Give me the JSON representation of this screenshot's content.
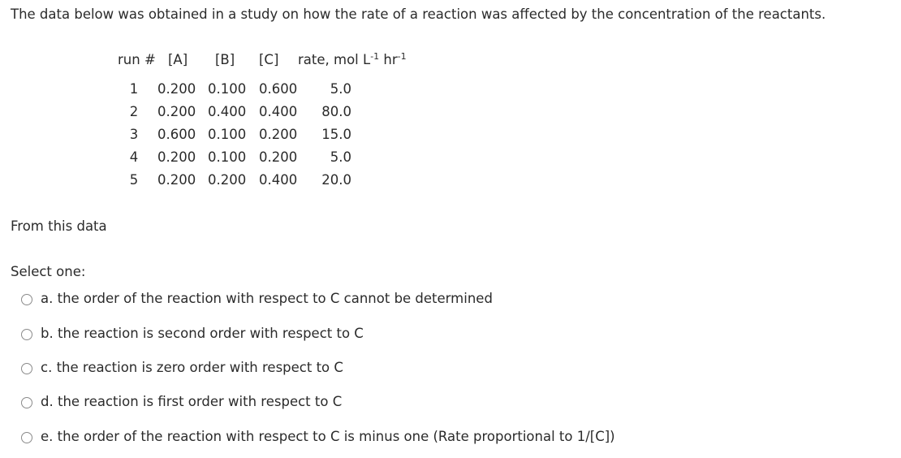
{
  "question": {
    "intro": "The data below was obtained in a study on how the rate of a reaction was affected by the concentration of the reactants.",
    "table": {
      "header": [
        [
          {
            "text": "run #"
          }
        ],
        [
          {
            "text": "[A]"
          }
        ],
        [
          {
            "text": "[B]"
          }
        ],
        [
          {
            "text": "[C]"
          }
        ],
        [
          {
            "text": "rate, mol L"
          },
          {
            "sup": "-1"
          },
          {
            "text": " hr"
          },
          {
            "sup": "-1"
          }
        ]
      ],
      "rows": [
        [
          "1",
          "0.200",
          "0.100",
          "0.600",
          "5.0"
        ],
        [
          "2",
          "0.200",
          "0.400",
          "0.400",
          "80.0"
        ],
        [
          "3",
          "0.600",
          "0.100",
          "0.200",
          "15.0"
        ],
        [
          "4",
          "0.200",
          "0.100",
          "0.200",
          "5.0"
        ],
        [
          "5",
          "0.200",
          "0.200",
          "0.400",
          "20.0"
        ]
      ]
    },
    "prompt": "From this data",
    "select_label": "Select one:",
    "options": [
      {
        "letter": "a.",
        "text": "the order of the reaction with respect to C cannot be determined"
      },
      {
        "letter": "b.",
        "text": "the reaction is second order with respect to C"
      },
      {
        "letter": "c.",
        "text": "the reaction is zero order with respect to C"
      },
      {
        "letter": "d.",
        "text": "the reaction is first order with respect to C"
      },
      {
        "letter": "e.",
        "text": "the order of the reaction with respect to C is minus one (Rate proportional to 1/[C])"
      }
    ]
  }
}
